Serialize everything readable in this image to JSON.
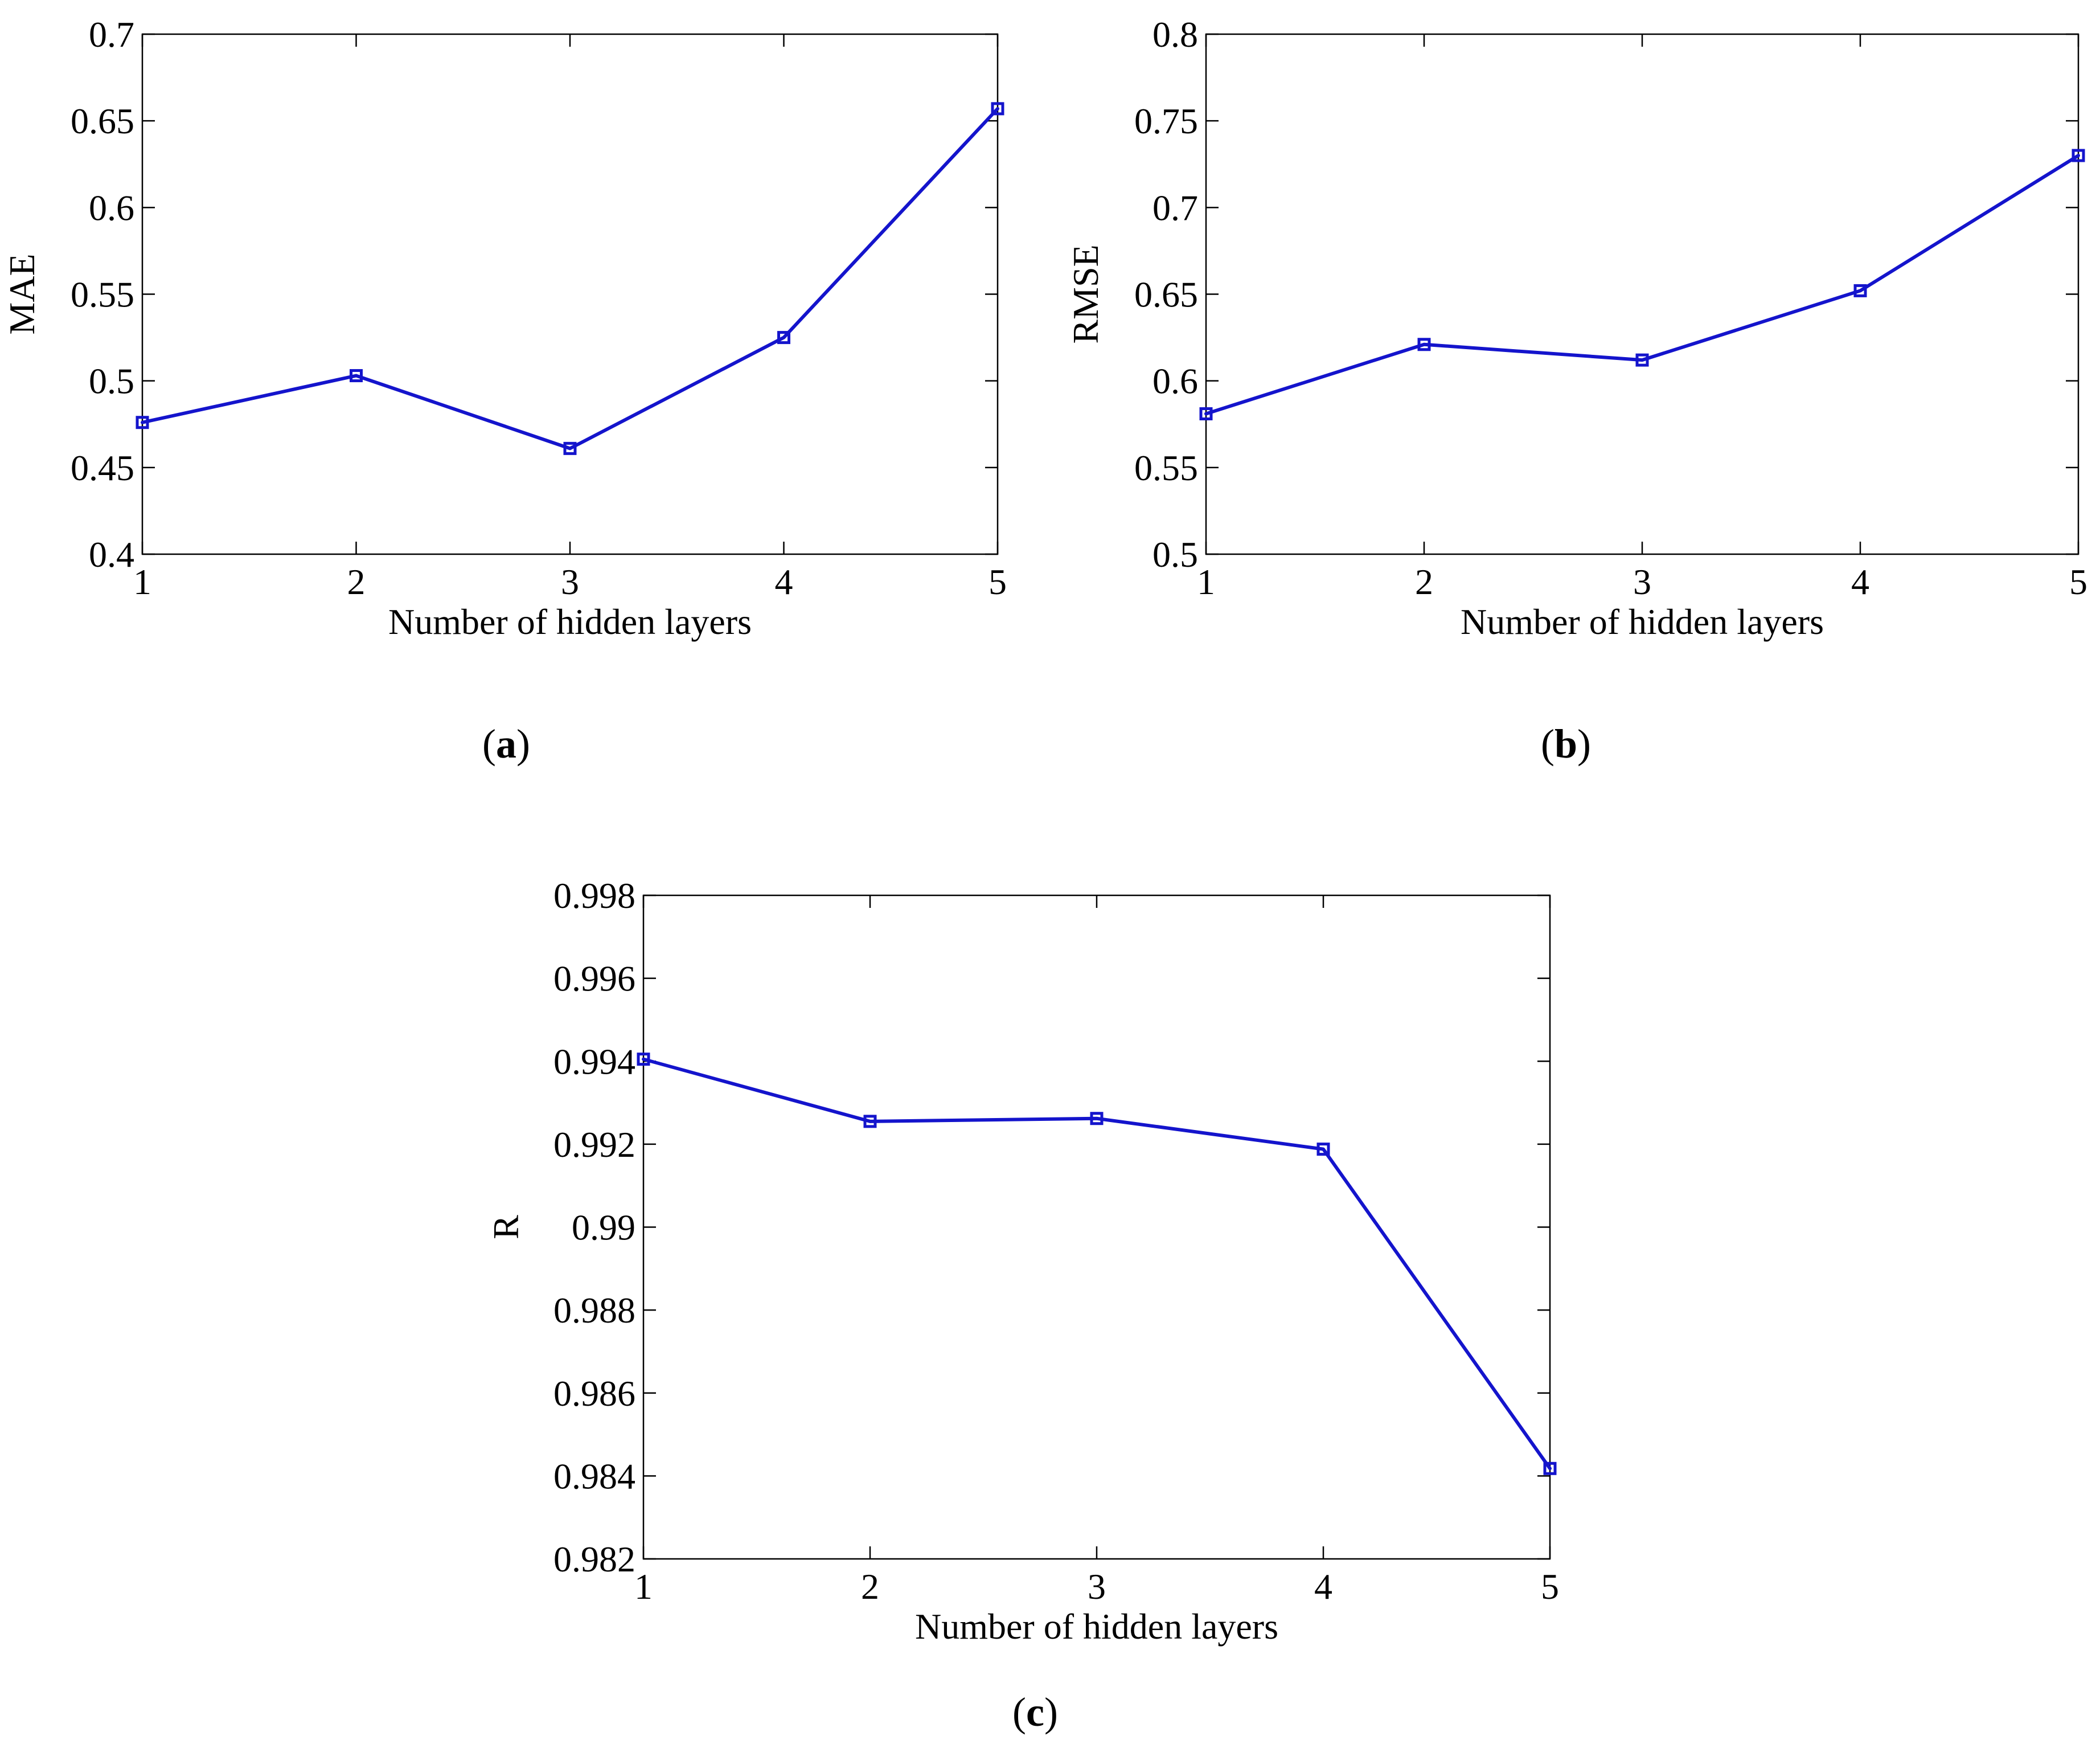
{
  "colors": {
    "series": "#1414cc",
    "axis": "#000000",
    "background": "#ffffff"
  },
  "chart_data": [
    {
      "type": "line",
      "panel": "a",
      "x": [
        1,
        2,
        3,
        4,
        5
      ],
      "xticks": [
        "1",
        "2",
        "3",
        "4",
        "5"
      ],
      "xlim": [
        1,
        5
      ],
      "yticks": [
        "0.4",
        "0.45",
        "0.5",
        "0.55",
        "0.6",
        "0.65",
        "0.7"
      ],
      "ytick_values": [
        0.4,
        0.45,
        0.5,
        0.55,
        0.6,
        0.65,
        0.7
      ],
      "ylim": [
        0.4,
        0.7
      ],
      "xlabel": "Number of hidden layers",
      "ylabel": "MAE",
      "series": [
        {
          "name": "MAE",
          "values": [
            0.476,
            0.503,
            0.461,
            0.525,
            0.657
          ],
          "marker": "square"
        }
      ],
      "caption": {
        "open": "(",
        "letter": "a",
        "close": ")"
      }
    },
    {
      "type": "line",
      "panel": "b",
      "x": [
        1,
        2,
        3,
        4,
        5
      ],
      "xticks": [
        "1",
        "2",
        "3",
        "4",
        "5"
      ],
      "xlim": [
        1,
        5
      ],
      "yticks": [
        "0.5",
        "0.55",
        "0.6",
        "0.65",
        "0.7",
        "0.75",
        "0.8"
      ],
      "ytick_values": [
        0.5,
        0.55,
        0.6,
        0.65,
        0.7,
        0.75,
        0.8
      ],
      "ylim": [
        0.5,
        0.8
      ],
      "xlabel": "Number of hidden layers",
      "ylabel": "RMSE",
      "series": [
        {
          "name": "RMSE",
          "values": [
            0.581,
            0.621,
            0.612,
            0.652,
            0.73
          ],
          "marker": "square"
        }
      ],
      "caption": {
        "open": "(",
        "letter": "b",
        "close": ")"
      }
    },
    {
      "type": "line",
      "panel": "c",
      "x": [
        1,
        2,
        3,
        4,
        5
      ],
      "xticks": [
        "1",
        "2",
        "3",
        "4",
        "5"
      ],
      "xlim": [
        1,
        5
      ],
      "yticks": [
        "0.982",
        "0.984",
        "0.986",
        "0.988",
        "0.99",
        "0.992",
        "0.994",
        "0.996",
        "0.998"
      ],
      "ytick_values": [
        0.982,
        0.984,
        0.986,
        0.988,
        0.99,
        0.992,
        0.994,
        0.996,
        0.998
      ],
      "ylim": [
        0.982,
        0.998
      ],
      "xlabel": "Number of hidden layers",
      "ylabel": "R",
      "series": [
        {
          "name": "R",
          "values": [
            0.99405,
            0.99255,
            0.99262,
            0.99188,
            0.98418
          ],
          "marker": "square"
        }
      ],
      "caption": {
        "open": "(",
        "letter": "c",
        "close": ")"
      }
    }
  ]
}
